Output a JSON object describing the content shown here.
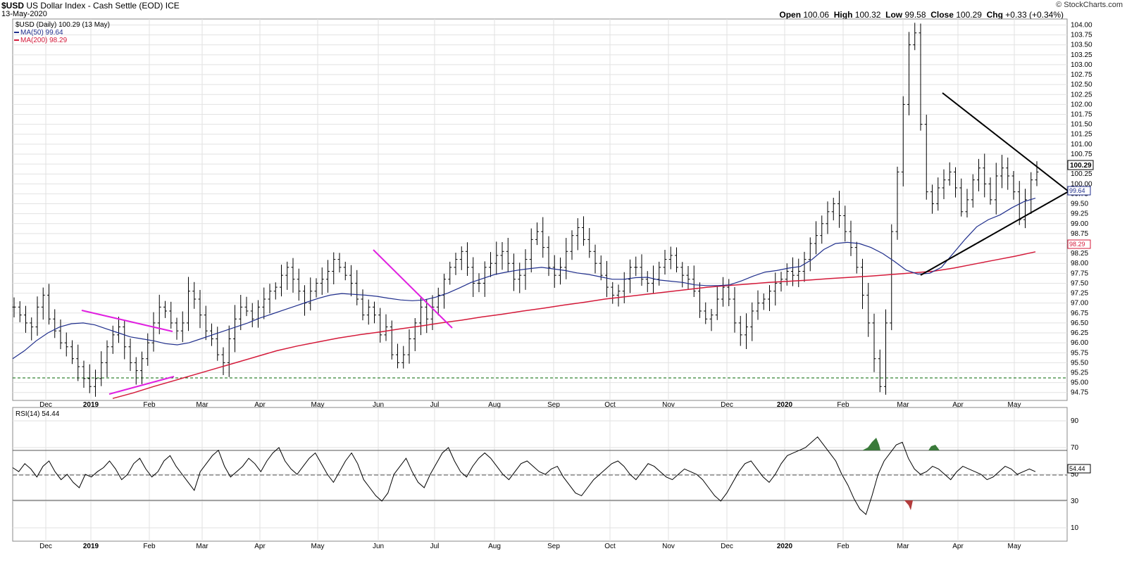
{
  "header": {
    "symbol": "$USD",
    "name": "US Dollar Index - Cash Settle (EOD)",
    "exchange": "ICE",
    "date": "13-May-2020",
    "open_label": "Open",
    "open": "100.06",
    "high_label": "High",
    "high": "100.32",
    "low_label": "Low",
    "low": "99.58",
    "close_label": "Close",
    "close": "100.29",
    "chg_label": "Chg",
    "chg": "+0.33 (+0.34%)",
    "brand": "© StockCharts.com"
  },
  "legend": {
    "price": "$USD (Daily) 100.29 (13 May)",
    "ma50": "MA(50) 99.64",
    "ma200": "MA(200) 98.29",
    "rsi": "RSI(14) 54.44"
  },
  "colors": {
    "price_bars": "#000000",
    "ma50": "#1f2e8c",
    "ma200": "#d41a3a",
    "trendlines_magenta": "#e020e0",
    "triangle": "#000000",
    "support_dashed": "#006600",
    "rsi_overbought_fill": "#3a7a3a",
    "rsi_oversold_fill": "#b33b3b",
    "grid": "#e2e2e2"
  },
  "chart_data": [
    {
      "type": "ohlc",
      "title": "$USD US Dollar Index - Cash Settle (EOD)",
      "ylim": [
        94.55,
        104.15
      ],
      "y_ticks": [
        "94.75",
        "95.00",
        "95.25",
        "95.50",
        "95.75",
        "96.00",
        "96.25",
        "96.50",
        "96.75",
        "97.00",
        "97.25",
        "97.50",
        "97.75",
        "98.00",
        "98.25",
        "98.50",
        "98.75",
        "99.00",
        "99.25",
        "99.50",
        "99.75",
        "100.00",
        "100.25",
        "100.50",
        "100.75",
        "101.00",
        "101.25",
        "101.50",
        "101.75",
        "102.00",
        "102.25",
        "102.50",
        "102.75",
        "103.00",
        "103.25",
        "103.50",
        "103.75",
        "104.00"
      ],
      "x_labels": [
        "Dec",
        "2019",
        "Feb",
        "Mar",
        "Apr",
        "May",
        "Jun",
        "Jul",
        "Aug",
        "Sep",
        "Oct",
        "Nov",
        "Dec",
        "2020",
        "Feb",
        "Mar",
        "Apr",
        "May"
      ],
      "bold_x_labels": [
        "2019",
        "2020"
      ],
      "price_path_points": [
        96.9,
        96.7,
        96.5,
        96.4,
        96.9,
        97.2,
        96.6,
        96.3,
        96.0,
        95.9,
        95.6,
        95.4,
        95.1,
        94.9,
        95.1,
        95.5,
        95.9,
        96.2,
        96.4,
        95.9,
        95.5,
        95.3,
        95.6,
        96.0,
        96.5,
        96.9,
        96.8,
        96.5,
        96.3,
        96.5,
        97.3,
        97.1,
        96.7,
        96.3,
        96.1,
        95.7,
        95.5,
        96.1,
        96.6,
        96.9,
        96.8,
        96.6,
        96.9,
        97.1,
        97.3,
        97.4,
        97.7,
        97.9,
        97.6,
        97.3,
        97.0,
        97.3,
        97.5,
        97.6,
        97.8,
        98.1,
        97.9,
        97.7,
        97.5,
        97.1,
        96.7,
        96.9,
        96.7,
        96.2,
        96.4,
        95.7,
        95.5,
        95.7,
        96.1,
        96.5,
        96.9,
        96.6,
        96.9,
        97.2,
        97.6,
        97.9,
        98.1,
        98.3,
        97.9,
        97.5,
        97.5,
        97.9,
        98.0,
        98.2,
        98.3,
        98.0,
        97.6,
        97.7,
        98.1,
        98.6,
        98.8,
        98.4,
        97.9,
        97.7,
        97.9,
        98.3,
        98.7,
        98.9,
        98.6,
        98.3,
        98.0,
        97.7,
        97.4,
        97.2,
        97.3,
        97.6,
        97.9,
        97.9,
        97.6,
        97.5,
        97.6,
        97.9,
        98.1,
        98.2,
        97.9,
        97.7,
        97.6,
        97.3,
        96.8,
        96.6,
        96.7,
        97.1,
        97.4,
        97.1,
        96.5,
        96.2,
        96.4,
        96.8,
        97.0,
        97.1,
        97.3,
        97.5,
        97.6,
        97.8,
        97.7,
        97.8,
        98.1,
        98.5,
        98.7,
        99.0,
        99.3,
        99.5,
        99.2,
        98.8,
        98.4,
        97.9,
        97.2,
        96.5,
        95.6,
        94.9,
        96.5,
        98.8,
        100.3,
        102.0,
        103.5,
        103.8,
        101.5,
        99.8,
        99.5,
        99.9,
        100.1,
        100.3,
        99.9,
        99.3,
        99.6,
        100.1,
        100.4,
        100.0,
        99.6,
        100.2,
        100.4,
        100.2,
        99.8,
        99.1,
        99.6,
        100.1,
        100.3
      ]
    },
    {
      "type": "line",
      "name": "MA(50) 99.64",
      "ylim": [
        94.55,
        104.15
      ],
      "path_points": [
        95.6,
        95.8,
        96.05,
        96.25,
        96.4,
        96.48,
        96.5,
        96.45,
        96.35,
        96.25,
        96.15,
        96.1,
        96.05,
        95.98,
        95.95,
        96.0,
        96.1,
        96.2,
        96.3,
        96.4,
        96.5,
        96.62,
        96.72,
        96.82,
        96.92,
        97.02,
        97.12,
        97.2,
        97.24,
        97.22,
        97.2,
        97.17,
        97.12,
        97.08,
        97.06,
        97.08,
        97.15,
        97.25,
        97.38,
        97.52,
        97.62,
        97.72,
        97.78,
        97.83,
        97.87,
        97.9,
        97.86,
        97.82,
        97.76,
        97.72,
        97.66,
        97.6,
        97.6,
        97.64,
        97.65,
        97.58,
        97.55,
        97.52,
        97.46,
        97.44,
        97.44,
        97.46,
        97.56,
        97.68,
        97.78,
        97.82,
        97.88,
        97.92,
        98.1,
        98.35,
        98.5,
        98.53,
        98.5,
        98.4,
        98.25,
        98.05,
        97.83,
        97.73,
        97.75,
        97.9,
        98.25,
        98.6,
        98.92,
        99.1,
        99.22,
        99.4,
        99.55,
        99.64
      ]
    },
    {
      "type": "line",
      "name": "MA(200) 98.29",
      "ylim": [
        94.55,
        104.15
      ],
      "path_points": [
        94.6,
        94.74,
        94.9,
        95.05,
        95.2,
        95.35,
        95.5,
        95.65,
        95.8,
        95.92,
        96.02,
        96.12,
        96.2,
        96.27,
        96.35,
        96.42,
        96.5,
        96.57,
        96.65,
        96.72,
        96.8,
        96.87,
        96.95,
        97.02,
        97.1,
        97.16,
        97.22,
        97.28,
        97.34,
        97.4,
        97.44,
        97.48,
        97.52,
        97.55,
        97.58,
        97.62,
        97.65,
        97.68,
        97.72,
        97.76,
        97.8,
        97.88,
        97.98,
        98.08,
        98.18,
        98.29
      ]
    },
    {
      "type": "line",
      "name": "RSI(14) 54.44",
      "ylim": [
        0,
        100
      ],
      "y_ticks": [
        "10",
        "30",
        "50",
        "70",
        "90"
      ],
      "reference_lines": [
        30,
        50,
        70
      ],
      "x_labels": [
        "Dec",
        "2019",
        "Feb",
        "Mar",
        "Apr",
        "May",
        "Jun",
        "Jul",
        "Aug",
        "Sep",
        "Oct",
        "Nov",
        "Dec",
        "2020",
        "Feb",
        "Mar",
        "Apr",
        "May"
      ],
      "path_points": [
        55,
        52,
        58,
        54,
        48,
        56,
        60,
        52,
        46,
        50,
        44,
        40,
        50,
        48,
        52,
        55,
        60,
        54,
        46,
        50,
        58,
        62,
        54,
        48,
        52,
        60,
        64,
        56,
        50,
        44,
        38,
        52,
        58,
        64,
        68,
        56,
        48,
        52,
        56,
        62,
        58,
        52,
        60,
        66,
        70,
        60,
        54,
        50,
        56,
        62,
        66,
        58,
        50,
        44,
        52,
        60,
        66,
        58,
        46,
        40,
        34,
        30,
        36,
        50,
        56,
        62,
        52,
        44,
        40,
        50,
        58,
        66,
        70,
        60,
        52,
        48,
        56,
        62,
        66,
        62,
        56,
        50,
        46,
        52,
        58,
        60,
        56,
        52,
        50,
        54,
        56,
        48,
        42,
        36,
        34,
        40,
        46,
        50,
        54,
        58,
        60,
        56,
        50,
        46,
        52,
        58,
        56,
        52,
        48,
        46,
        50,
        54,
        52,
        50,
        46,
        40,
        34,
        30,
        36,
        44,
        52,
        58,
        60,
        54,
        48,
        44,
        50,
        58,
        64,
        66,
        68,
        70,
        74,
        78,
        72,
        66,
        60,
        50,
        42,
        32,
        24,
        20,
        34,
        50,
        60,
        66,
        72,
        74,
        62,
        54,
        50,
        52,
        56,
        54,
        50,
        46,
        52,
        56,
        54,
        52,
        50,
        46,
        48,
        52,
        56,
        54,
        50,
        52,
        54,
        52
      ]
    }
  ]
}
